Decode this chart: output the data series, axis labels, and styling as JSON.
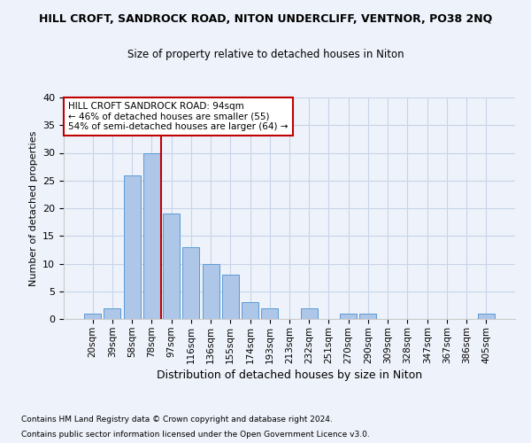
{
  "title1": "HILL CROFT, SANDROCK ROAD, NITON UNDERCLIFF, VENTNOR, PO38 2NQ",
  "title2": "Size of property relative to detached houses in Niton",
  "xlabel": "Distribution of detached houses by size in Niton",
  "ylabel": "Number of detached properties",
  "footnote1": "Contains HM Land Registry data © Crown copyright and database right 2024.",
  "footnote2": "Contains public sector information licensed under the Open Government Licence v3.0.",
  "categories": [
    "20sqm",
    "39sqm",
    "58sqm",
    "78sqm",
    "97sqm",
    "116sqm",
    "136sqm",
    "155sqm",
    "174sqm",
    "193sqm",
    "213sqm",
    "232sqm",
    "251sqm",
    "270sqm",
    "290sqm",
    "309sqm",
    "328sqm",
    "347sqm",
    "367sqm",
    "386sqm",
    "405sqm"
  ],
  "values": [
    1,
    2,
    26,
    30,
    19,
    13,
    10,
    8,
    3,
    2,
    0,
    2,
    0,
    1,
    1,
    0,
    0,
    0,
    0,
    0,
    1
  ],
  "bar_color": "#aec6e8",
  "bar_edge_color": "#5b9bd5",
  "bar_width": 0.85,
  "vline_color": "#c00000",
  "annotation_text": "HILL CROFT SANDROCK ROAD: 94sqm\n← 46% of detached houses are smaller (55)\n54% of semi-detached houses are larger (64) →",
  "annotation_box_color": "#ffffff",
  "annotation_box_edge": "#c00000",
  "ylim": [
    0,
    40
  ],
  "yticks": [
    0,
    5,
    10,
    15,
    20,
    25,
    30,
    35,
    40
  ],
  "grid_color": "#c8d4e8",
  "background_color": "#eef2fa",
  "bg_axes": "#eef2fa"
}
